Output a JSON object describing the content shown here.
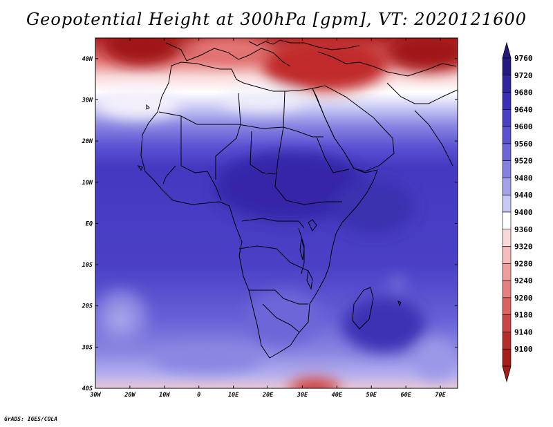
{
  "title": "Geopotential Height at 300hPa [gpm], VT: 2020121600",
  "footer": "GrADS: IGES/COLA",
  "map": {
    "region": "Africa and surrounding seas",
    "variable": "Geopotential Height at 300hPa",
    "units": "gpm",
    "valid_time": "2020121600",
    "lon_range": [
      -30,
      75
    ],
    "lat_range": [
      -40,
      45
    ],
    "lon_ticks": [
      "30W",
      "20W",
      "10W",
      "0",
      "10E",
      "20E",
      "30E",
      "40E",
      "50E",
      "60E",
      "70E"
    ],
    "lat_ticks": [
      "40N",
      "30N",
      "20N",
      "10N",
      "EQ",
      "10S",
      "20S",
      "30S",
      "40S"
    ],
    "colors": {
      "low_red": "#a82020",
      "mid_white": "#ffffff",
      "high_blue": "#3c32b4"
    }
  },
  "colorbar": {
    "levels": [
      "9760",
      "9720",
      "9680",
      "9640",
      "9600",
      "9560",
      "9520",
      "9480",
      "9440",
      "9400",
      "9360",
      "9320",
      "9280",
      "9240",
      "9200",
      "9180",
      "9140",
      "9100"
    ],
    "colors": [
      "#241a80",
      "#3024a0",
      "#3a30b8",
      "#4a40c8",
      "#5a52d2",
      "#6c66d8",
      "#8480e0",
      "#a4a0ea",
      "#c8c8f4",
      "#ffffff",
      "#f8d8d8",
      "#f4bcbc",
      "#ee9e9e",
      "#e68080",
      "#dc6262",
      "#cc4444",
      "#b82c2c",
      "#a81c1c"
    ]
  }
}
